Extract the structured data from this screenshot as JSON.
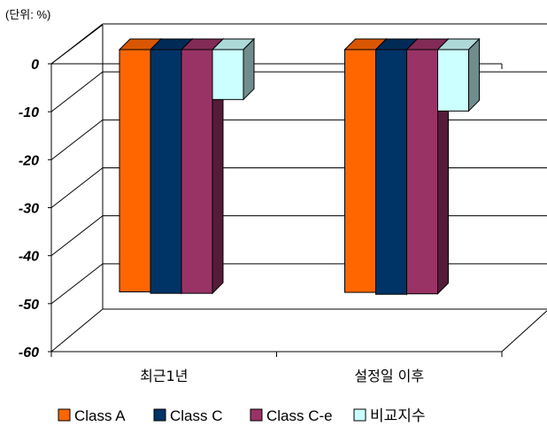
{
  "chart_data": {
    "type": "bar",
    "unit_label": "(단위: %)",
    "categories": [
      "최근1년",
      "설정일 이후"
    ],
    "series": [
      {
        "name": "Class A",
        "color": "#FF6600",
        "values": [
          -50.5,
          -50.6
        ]
      },
      {
        "name": "Class C",
        "color": "#003366",
        "values": [
          -50.8,
          -51.0
        ]
      },
      {
        "name": "Class C-e",
        "color": "#993366",
        "values": [
          -50.8,
          -50.9
        ]
      },
      {
        "name": "비교지수",
        "color": "#CCFFFF",
        "values": [
          -10.4,
          -12.8
        ]
      }
    ],
    "ylim": [
      -60,
      0
    ],
    "yticks": [
      0,
      -10,
      -20,
      -30,
      -40,
      -50,
      -60
    ],
    "grid": true,
    "legend": "bottom",
    "style": "3d-clustered"
  }
}
